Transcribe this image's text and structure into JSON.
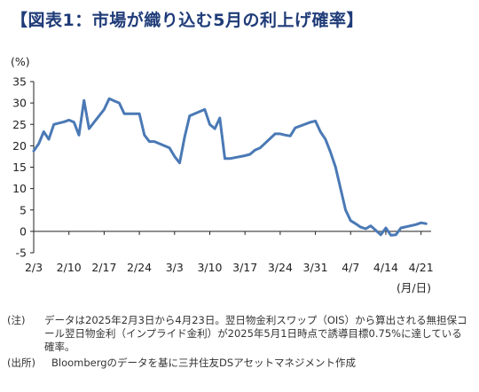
{
  "title": "【図表1：市場が織り込む5月の利上げ確率】",
  "chart_data": {
    "type": "line",
    "ylabel": "(%)",
    "xlabel": "(月/日)",
    "ylim": [
      -5,
      35
    ],
    "yticks": [
      -5,
      0,
      5,
      10,
      15,
      20,
      25,
      30,
      35
    ],
    "xlim": [
      0,
      79
    ],
    "xticks": [
      {
        "day": 0,
        "label": "2/3"
      },
      {
        "day": 7,
        "label": "2/10"
      },
      {
        "day": 14,
        "label": "2/17"
      },
      {
        "day": 21,
        "label": "2/24"
      },
      {
        "day": 28,
        "label": "3/3"
      },
      {
        "day": 35,
        "label": "3/10"
      },
      {
        "day": 42,
        "label": "3/17"
      },
      {
        "day": 49,
        "label": "3/24"
      },
      {
        "day": 56,
        "label": "3/31"
      },
      {
        "day": 63,
        "label": "4/7"
      },
      {
        "day": 70,
        "label": "4/14"
      },
      {
        "day": 77,
        "label": "4/21"
      }
    ],
    "grid": false,
    "color": "#4a79b5",
    "series": [
      {
        "x": [
          0,
          1,
          2,
          3,
          4,
          5,
          6,
          7,
          8,
          9,
          10,
          11,
          12,
          14,
          15,
          16,
          17,
          18,
          21,
          22,
          23,
          24,
          27,
          28,
          29,
          30,
          31,
          34,
          35,
          36,
          37,
          38,
          39,
          42,
          43,
          44,
          45,
          48,
          49,
          50,
          51,
          52,
          55,
          56,
          57,
          58,
          59,
          60,
          62,
          63,
          64,
          65,
          66,
          67,
          69,
          70,
          71,
          72,
          73,
          76,
          77,
          78
        ],
        "values": [
          18.8,
          20.5,
          23.3,
          21.5,
          25.0,
          25.3,
          25.6,
          26.0,
          25.5,
          22.5,
          30.6,
          24.0,
          25.5,
          28.5,
          31.0,
          30.5,
          30.0,
          27.5,
          27.5,
          22.5,
          21.0,
          21.0,
          19.5,
          17.5,
          16.0,
          22.0,
          27.0,
          28.5,
          25.0,
          24.0,
          26.5,
          17.0,
          17.0,
          17.7,
          18.0,
          19.0,
          19.5,
          22.8,
          22.8,
          22.5,
          22.3,
          24.2,
          25.5,
          25.8,
          23.3,
          21.5,
          18.5,
          15.0,
          5.0,
          2.5,
          1.8,
          1.0,
          0.6,
          1.3,
          -0.8,
          0.8,
          -0.9,
          -0.8,
          0.8,
          1.6,
          2.0,
          1.8
        ]
      }
    ]
  },
  "notes": [
    {
      "key": "(注)",
      "text": "データは2025年2月3日から4月23日。翌日物金利スワップ（OIS）から算出される無担保コール翌日物金利（インプライド金利）が2025年5月1日時点で誘導目標0.75%に達している確率。"
    }
  ],
  "source": {
    "key": "(出所)",
    "text": "Bloombergのデータを基に三井住友DSアセットマネジメント作成"
  }
}
